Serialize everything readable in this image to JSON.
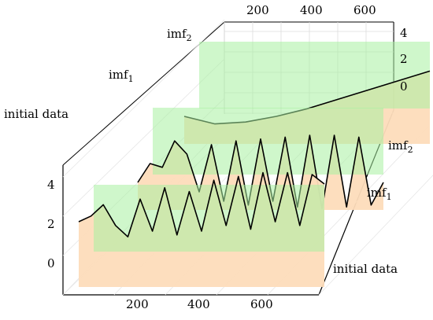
{
  "chart_data": {
    "type": "line",
    "projection": "3d-waterfall",
    "title": "",
    "x_ticks": [
      "200",
      "400",
      "600"
    ],
    "z_ticks": [
      "0",
      "2",
      "4"
    ],
    "z_ticks_back": [
      "0",
      "2",
      "4"
    ],
    "xlim": [
      0,
      800
    ],
    "zlim": [
      -1,
      5
    ],
    "grid": true,
    "series": [
      {
        "name": "initial data",
        "label": "initial data",
        "fill_color": "#fddcbb",
        "highlight_color": "#a8f0a0",
        "line_color": "#000000",
        "x": [
          0,
          40,
          80,
          120,
          160,
          200,
          240,
          280,
          320,
          360,
          400,
          440,
          480,
          520,
          560,
          600,
          640,
          680,
          720,
          760,
          800
        ],
        "y": [
          2.0,
          2.3,
          2.9,
          1.8,
          1.2,
          3.2,
          1.5,
          3.8,
          1.3,
          3.6,
          1.5,
          4.2,
          1.8,
          4.4,
          1.6,
          4.6,
          2.0,
          4.6,
          1.8,
          4.5,
          4.0
        ]
      },
      {
        "name": "imf_1",
        "label_main": "imf",
        "label_sub": "1",
        "fill_color": "#fddcbb",
        "highlight_color": "#a8f0a0",
        "line_color": "#000000",
        "x": [
          0,
          40,
          80,
          120,
          160,
          200,
          240,
          280,
          320,
          360,
          400,
          440,
          480,
          520,
          560,
          600,
          640,
          680,
          720,
          760,
          800
        ],
        "y": [
          0.0,
          1.0,
          0.8,
          2.2,
          1.5,
          -0.5,
          2.0,
          -1.0,
          2.2,
          -1.2,
          2.3,
          -1.0,
          2.4,
          -1.3,
          2.5,
          -1.4,
          2.5,
          -1.3,
          2.4,
          -1.2,
          0.0
        ]
      },
      {
        "name": "imf_2",
        "label_main": "imf",
        "label_sub": "2",
        "fill_color": "#fddcbb",
        "highlight_color": "#a8f0a0",
        "line_color": "#000000",
        "x": [
          0,
          100,
          200,
          300,
          400,
          500,
          600,
          700,
          800
        ],
        "y": [
          0.0,
          -0.4,
          -0.3,
          0.0,
          0.4,
          0.9,
          1.4,
          1.9,
          2.4
        ]
      }
    ],
    "highlight_x_range": [
      100,
      800
    ]
  }
}
